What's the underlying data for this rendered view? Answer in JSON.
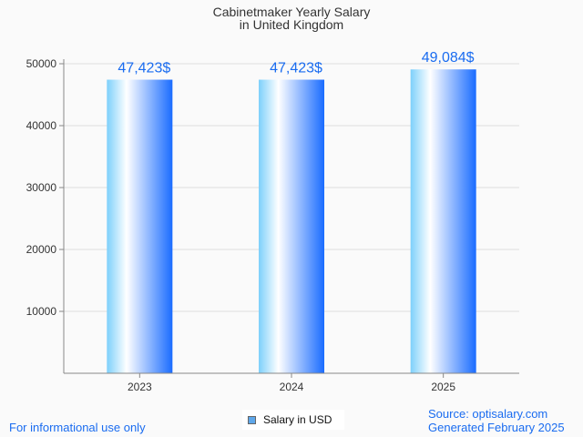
{
  "chart_data": {
    "type": "bar",
    "title": "Cabinetmaker Yearly Salary",
    "subtitle": "in United Kingdom",
    "categories": [
      "2023",
      "2024",
      "2025"
    ],
    "values": [
      47423,
      47423,
      49084
    ],
    "data_labels": [
      "47,423$",
      "47,423$",
      "49,084$"
    ],
    "yticks": [
      10000,
      20000,
      30000,
      40000,
      50000
    ],
    "ylim": [
      0,
      50000
    ],
    "xlabel": "",
    "ylabel": "",
    "grid": true,
    "legend": {
      "label": "Salary in USD",
      "placement": "bottom-center"
    },
    "colors": {
      "label": "#1a6cf0",
      "bar_light": "#ffffff",
      "bar_left": "#7dd0fb",
      "bar_right": "#1a6cff"
    }
  },
  "footer": {
    "disclaimer": "For informational use only",
    "source": "Source: optisalary.com",
    "generated": "Generated February 2025"
  }
}
